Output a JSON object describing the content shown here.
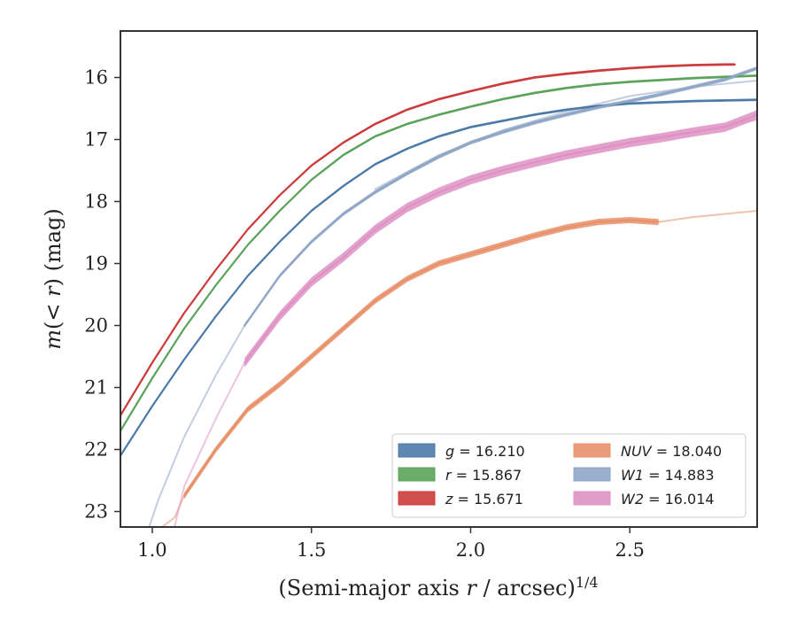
{
  "chart_data": {
    "type": "line",
    "title": "",
    "xlabel": "(Semi-major axis r / arcsec)^1/4",
    "ylabel": "m(< r) (mag)",
    "xlim": [
      0.9,
      2.9
    ],
    "ylim": [
      23.25,
      15.25
    ],
    "y_inverted": true,
    "grid": false,
    "x_ticks": [
      1.0,
      1.5,
      2.0,
      2.5
    ],
    "x_tick_labels": [
      "1.0",
      "1.5",
      "2.0",
      "2.5"
    ],
    "y_ticks": [
      16,
      17,
      18,
      19,
      20,
      21,
      22,
      23
    ],
    "y_tick_labels": [
      "16",
      "17",
      "18",
      "19",
      "20",
      "21",
      "22",
      "23"
    ],
    "legend_position": "lower-right",
    "legend_columns": 2,
    "series": [
      {
        "name": "g = 16.210",
        "color": "#4c7aa8",
        "band_width": 0.04,
        "x": [
          0.9,
          1.0,
          1.1,
          1.2,
          1.3,
          1.4,
          1.5,
          1.6,
          1.7,
          1.8,
          1.9,
          2.0,
          2.1,
          2.2,
          2.3,
          2.4,
          2.5,
          2.6,
          2.7,
          2.8,
          2.9
        ],
        "y": [
          22.1,
          21.3,
          20.55,
          19.85,
          19.2,
          18.65,
          18.15,
          17.75,
          17.4,
          17.15,
          16.95,
          16.8,
          16.7,
          16.6,
          16.52,
          16.46,
          16.42,
          16.4,
          16.38,
          16.37,
          16.36
        ]
      },
      {
        "name": "r = 15.867",
        "color": "#5aa35a",
        "band_width": 0.04,
        "x": [
          0.9,
          1.0,
          1.1,
          1.2,
          1.3,
          1.4,
          1.5,
          1.6,
          1.7,
          1.8,
          1.9,
          2.0,
          2.1,
          2.2,
          2.3,
          2.4,
          2.5,
          2.6,
          2.7,
          2.8,
          2.9
        ],
        "y": [
          21.7,
          20.85,
          20.05,
          19.35,
          18.7,
          18.15,
          17.65,
          17.25,
          16.95,
          16.75,
          16.6,
          16.47,
          16.35,
          16.25,
          16.17,
          16.11,
          16.07,
          16.04,
          16.01,
          15.99,
          15.97
        ]
      },
      {
        "name": "z = 15.671",
        "color": "#cc3b3b",
        "band_width": 0.04,
        "x": [
          0.9,
          1.0,
          1.1,
          1.2,
          1.3,
          1.4,
          1.5,
          1.6,
          1.7,
          1.8,
          1.9,
          2.0,
          2.1,
          2.2,
          2.3,
          2.4,
          2.5,
          2.6,
          2.7,
          2.8,
          2.83
        ],
        "y": [
          21.45,
          20.6,
          19.8,
          19.1,
          18.45,
          17.9,
          17.42,
          17.05,
          16.75,
          16.52,
          16.35,
          16.22,
          16.1,
          16.0,
          15.94,
          15.89,
          15.85,
          15.82,
          15.8,
          15.79,
          15.79
        ]
      },
      {
        "name": "NUV = 18.040",
        "color": "#e8906a",
        "band_width": 0.1,
        "x": [
          1.1,
          1.2,
          1.3,
          1.4,
          1.5,
          1.6,
          1.7,
          1.8,
          1.9,
          2.0,
          2.1,
          2.2,
          2.3,
          2.4,
          2.5,
          2.59
        ],
        "y": [
          22.75,
          22.0,
          21.35,
          20.95,
          20.5,
          20.05,
          19.6,
          19.25,
          19.0,
          18.85,
          18.7,
          18.55,
          18.42,
          18.33,
          18.3,
          18.33
        ]
      },
      {
        "name": "W1 = 14.883",
        "color": "#8fa6c6",
        "band_width": 0.06,
        "x": [
          1.29,
          1.4,
          1.5,
          1.6,
          1.7,
          1.8,
          1.9,
          2.0,
          2.1,
          2.2,
          2.3,
          2.4,
          2.5,
          2.6,
          2.7,
          2.8,
          2.9
        ],
        "y": [
          20.0,
          19.2,
          18.65,
          18.2,
          17.85,
          17.55,
          17.28,
          17.05,
          16.88,
          16.73,
          16.6,
          16.48,
          16.38,
          16.27,
          16.15,
          16.03,
          15.85
        ]
      },
      {
        "name": "W2 = 16.014",
        "color": "#de92c4",
        "band_width": 0.15,
        "x": [
          1.29,
          1.4,
          1.5,
          1.6,
          1.7,
          1.8,
          1.9,
          2.0,
          2.1,
          2.2,
          2.3,
          2.4,
          2.5,
          2.6,
          2.7,
          2.8,
          2.9
        ],
        "y": [
          20.6,
          19.85,
          19.3,
          18.9,
          18.45,
          18.1,
          17.85,
          17.65,
          17.5,
          17.37,
          17.25,
          17.15,
          17.05,
          16.97,
          16.88,
          16.8,
          16.6
        ]
      }
    ],
    "faint_extensions": [
      {
        "color": "#e8906a",
        "x": [
          1.03,
          1.07,
          1.1
        ],
        "y": [
          23.25,
          23.1,
          22.75
        ]
      },
      {
        "color": "#e8906a",
        "x": [
          2.59,
          2.7,
          2.8,
          2.9
        ],
        "y": [
          18.33,
          18.25,
          18.2,
          18.15
        ]
      },
      {
        "color": "#8fa6c6",
        "x": [
          0.99,
          1.02,
          1.1,
          1.2,
          1.29
        ],
        "y": [
          23.25,
          22.8,
          21.8,
          20.8,
          20.0
        ]
      },
      {
        "color": "#de92c4",
        "x": [
          1.07,
          1.1,
          1.2,
          1.29
        ],
        "y": [
          23.25,
          22.6,
          21.5,
          20.6
        ]
      },
      {
        "color": "#8fa6c6",
        "x": [
          1.7,
          1.9,
          2.1,
          2.3,
          2.5,
          2.7,
          2.9
        ],
        "y": [
          17.8,
          17.25,
          16.85,
          16.55,
          16.3,
          16.15,
          16.05
        ]
      },
      {
        "color": "#de92c4",
        "x": [
          2.5,
          2.7,
          2.9
        ],
        "y": [
          17.0,
          16.88,
          16.68
        ]
      }
    ]
  }
}
